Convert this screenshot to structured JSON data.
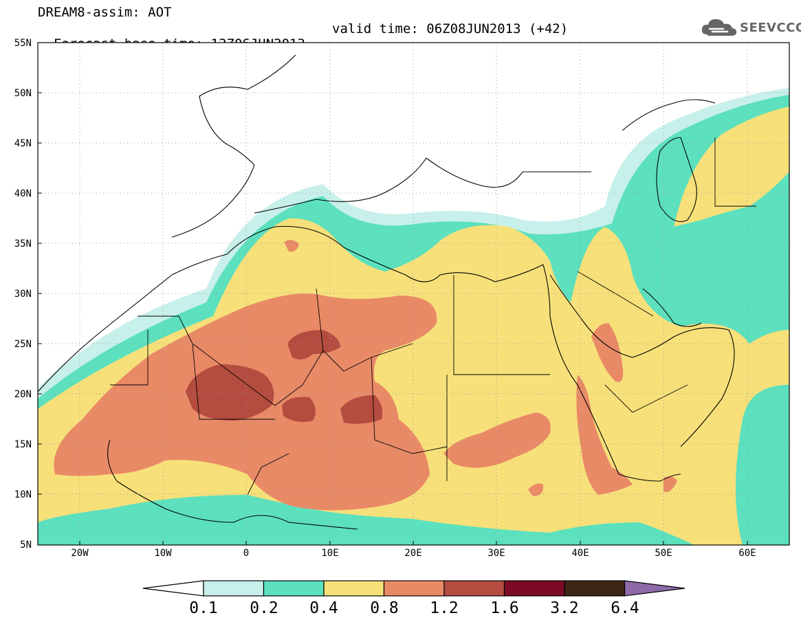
{
  "title": {
    "line1": "DREAM8-assim: AOT",
    "line2": "Forecast base time: 12Z06JUN2013",
    "valid": "valid time: 06Z08JUN2013 (+42)"
  },
  "logo": {
    "text": "SEEVCCC",
    "icon": "cloud-logo-icon"
  },
  "map": {
    "lat_labels": [
      "55N",
      "50N",
      "45N",
      "40N",
      "35N",
      "30N",
      "25N",
      "20N",
      "15N",
      "10N",
      "5N"
    ],
    "lon_labels": [
      "20W",
      "10W",
      "0",
      "10E",
      "20E",
      "30E",
      "40E",
      "50E",
      "60E"
    ],
    "lon_range": [
      -25,
      65
    ],
    "lat_range": [
      5,
      55
    ]
  },
  "legend": {
    "labels": [
      "0.1",
      "0.2",
      "0.4",
      "0.8",
      "1.2",
      "1.6",
      "3.2",
      "6.4"
    ],
    "colors": [
      "#c8f0ea",
      "#5ce0be",
      "#f7e07a",
      "#e98a67",
      "#b44c3f",
      "#7b0b27",
      "#3e2616",
      "#8e6aa9"
    ]
  },
  "chart_data": {
    "type": "heatmap",
    "variable": "AOT",
    "levels": [
      0.1,
      0.2,
      0.4,
      0.8,
      1.2,
      1.6,
      3.2,
      6.4
    ],
    "x_range": [
      -25,
      65
    ],
    "y_range": [
      5,
      55
    ]
  }
}
